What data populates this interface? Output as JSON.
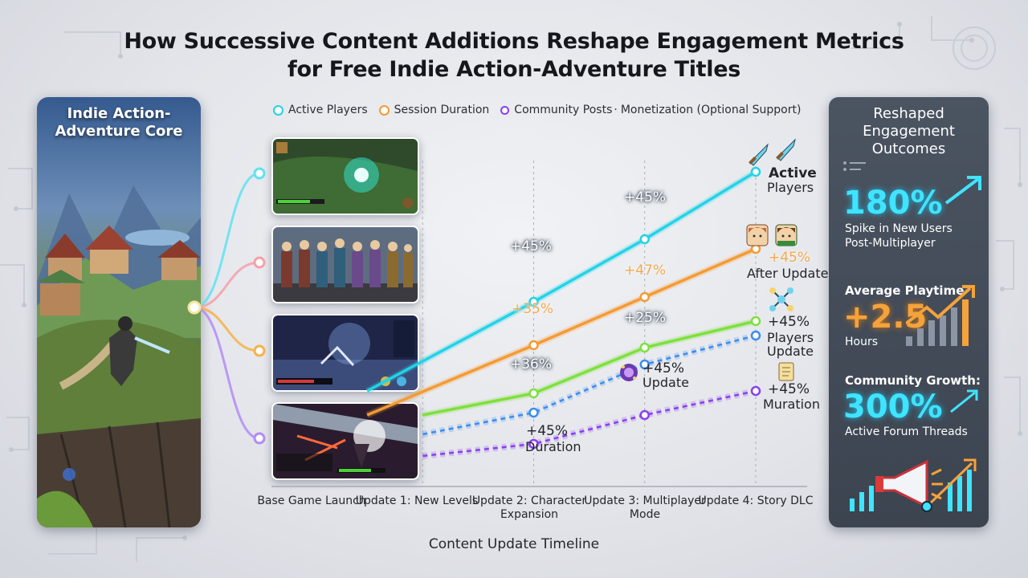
{
  "title": "How Successive Content Additions Reshape Engagement Metrics for Free Indie Action-Adventure Titles",
  "left_panel": {
    "title": "Indie Action-Adventure Core"
  },
  "legend": [
    {
      "label": "Active Players",
      "color": "#22d3e6"
    },
    {
      "label": "Session Duration",
      "color": "#f59a33"
    },
    {
      "label": "Community Posts",
      "color": "#8a3ff0"
    },
    {
      "label": "Monetization (Optional Support)",
      "color": ""
    }
  ],
  "chart_data": {
    "type": "line",
    "xlabel": "Content Update Timeline",
    "categories": [
      "Base Game Launch",
      "Update 1: New Levels",
      "Update 2: Character Expansion",
      "Update 3: Multiplayer Mode",
      "Update 4: Story DLC"
    ],
    "series": [
      {
        "name": "Active Players",
        "color": "#22d3e6",
        "style": "solid",
        "points": [
          {
            "x": 0.5,
            "y": 0.45
          },
          {
            "x": 2,
            "y": 2.3
          },
          {
            "x": 3,
            "y": 3.6
          },
          {
            "x": 4,
            "y": 5.0
          }
        ]
      },
      {
        "name": "Session Duration",
        "color": "#f59a33",
        "style": "solid",
        "points": [
          {
            "x": 0.5,
            "y": -0.05
          },
          {
            "x": 2,
            "y": 1.4
          },
          {
            "x": 3,
            "y": 2.4
          },
          {
            "x": 4,
            "y": 3.4
          }
        ]
      },
      {
        "style": "solid",
        "color": "#7ee03d",
        "points": [
          {
            "x": 1,
            "y": -0.05
          },
          {
            "x": 2,
            "y": 0.4
          },
          {
            "x": 3,
            "y": 1.35
          },
          {
            "x": 4,
            "y": 1.9
          }
        ]
      },
      {
        "style": "dashed",
        "color": "#3a8df0",
        "points": [
          {
            "x": 1,
            "y": -0.45
          },
          {
            "x": 2,
            "y": 0
          },
          {
            "x": 3,
            "y": 1.0
          },
          {
            "x": 4,
            "y": 1.6
          }
        ]
      },
      {
        "name": "Community Posts",
        "color": "#8a3ff0",
        "style": "dashed",
        "points": [
          {
            "x": 1,
            "y": -0.9
          },
          {
            "x": 2,
            "y": -0.65
          },
          {
            "x": 3,
            "y": -0.05
          },
          {
            "x": 4,
            "y": 0.45
          }
        ]
      }
    ],
    "annotations": [
      {
        "text": "+45%",
        "x": 2,
        "y": 2.3,
        "style": "white"
      },
      {
        "text": "+45%",
        "x": 3,
        "y": 3.6,
        "style": "white"
      },
      {
        "text": "+35%",
        "x": 2,
        "y": 1.4,
        "style": "orange"
      },
      {
        "text": "+47%",
        "x": 3,
        "y": 2.4,
        "style": "orange"
      },
      {
        "text": "+36%",
        "x": 2,
        "y": 0.4,
        "style": "white"
      },
      {
        "text": "+25%",
        "x": 3,
        "y": 1.35,
        "style": "white"
      },
      {
        "text": "+45%",
        "x": 2,
        "y": -0.65,
        "style": "plain"
      },
      {
        "text": "Duration",
        "x": 2,
        "y": -0.65,
        "style": "plain"
      },
      {
        "text": "+45%",
        "x": 3,
        "y": 0.7,
        "style": "plain"
      },
      {
        "text": "Update",
        "x": 3,
        "y": 0.7,
        "style": "plain"
      },
      {
        "text": "Active",
        "x": 4,
        "y": 5.0,
        "style": "plain"
      },
      {
        "text": "Players",
        "x": 4,
        "y": 5.0,
        "style": "plain"
      },
      {
        "text": "+45%",
        "x": 4,
        "y": 3.4,
        "style": "orange"
      },
      {
        "text": "After Update",
        "x": 4,
        "y": 3.4,
        "style": "plain"
      },
      {
        "text": "+45%",
        "x": 4,
        "y": 1.6,
        "style": "plain"
      },
      {
        "text": "Players",
        "x": 4,
        "y": 1.6,
        "style": "plain"
      },
      {
        "text": "Update",
        "x": 4,
        "y": 1.6,
        "style": "plain"
      },
      {
        "text": "+45%",
        "x": 4,
        "y": 0.45,
        "style": "plain"
      },
      {
        "text": "Muration",
        "x": 4,
        "y": 0.45,
        "style": "plain"
      }
    ]
  },
  "right_panel": {
    "title": "Reshaped Engagement Outcomes",
    "stat1": {
      "value": "180%",
      "label1": "Spike in New Users",
      "label2": "Post-Multiplayer"
    },
    "stat2": {
      "heading": "Average Playtime",
      "value": "+2.5",
      "label": "Hours"
    },
    "stat3": {
      "heading": "Community Growth:",
      "value": "300%",
      "label": "Active Forum Threads"
    }
  }
}
